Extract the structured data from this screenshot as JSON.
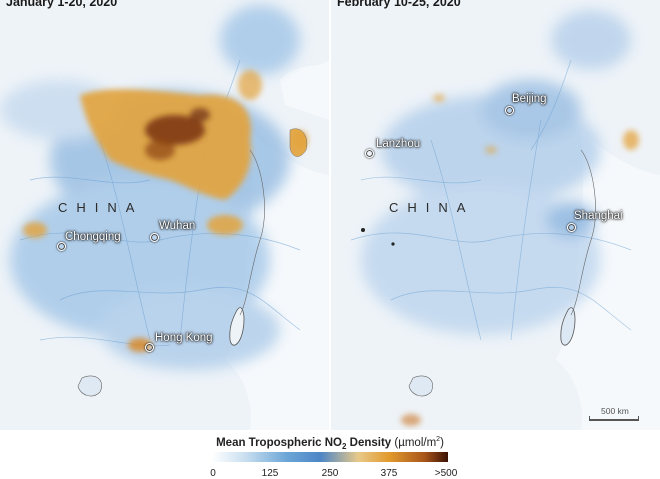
{
  "panels": [
    {
      "date": "January 1-20, 2020",
      "country": "CHINA",
      "cities": [
        "Chongqing",
        "Wuhan",
        "Hong Kong"
      ]
    },
    {
      "date": "February 10-25, 2020",
      "country": "CHINA",
      "cities": [
        "Lanzhou",
        "Beijing",
        "Shanghai"
      ]
    }
  ],
  "scale_label": "500 km",
  "legend": {
    "title": "Mean Tropospheric NO",
    "subscript": "2",
    "title_rest": " Density",
    "unit": "(µmol/m",
    "unit_sup": "2",
    "unit_close": ")",
    "ticks": [
      "0",
      "125",
      "250",
      "375",
      ">500"
    ]
  },
  "colors": {
    "low": "#ffffff",
    "mid_low": "#4d86c6",
    "mid_high": "#e19a2d",
    "high": "#3b1206",
    "land": "#eef3f8"
  }
}
